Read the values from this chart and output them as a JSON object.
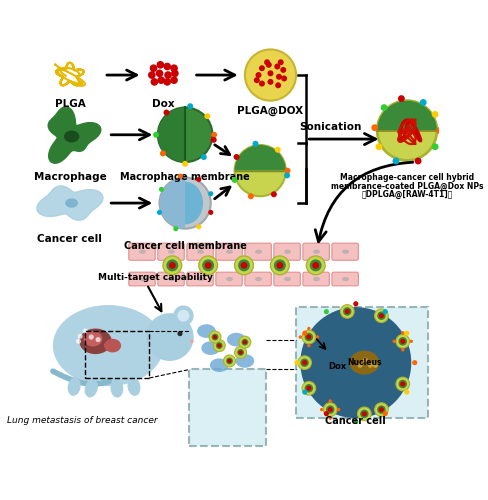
{
  "bg_color": "#ffffff",
  "top_section": {
    "plga_color": "#f5c518",
    "plga_label": "PLGA",
    "dox_dot_color": "#cc0000",
    "dox_label": "Dox",
    "plgadox_outer": "#e8d44d",
    "plgadox_label": "PLGA@DOX",
    "sonication_label": "Sonication",
    "hybrid_label1": "Macrophage-cancer cell hybrid",
    "hybrid_label2": "membrance-coated PLGA@Dox NPs",
    "hybrid_label3": "（DPLGA@[RAW-4T1]）"
  },
  "middle_section": {
    "macrophage_green": "#2e7d32",
    "macrophage_dark": "#1b4d1e",
    "macrophage_label": "Macrophage",
    "macro_membrane_label": "Macrophage membrane",
    "cancer_cell_blue": "#8ab8d4",
    "cancer_cell_label": "Cancer cell",
    "cancer_membrane_label": "Cancer cell membrane",
    "hybrid_np_label": ""
  },
  "bottom_section": {
    "vessel_pink": "#f4a0a0",
    "vessel_bg": "#f8d0d0",
    "nanoparticle_outer": "#c8d44d",
    "mouse_color": "#a8cfe0",
    "cancer_cell_big_color": "#1a5276",
    "dox_label": "Dox",
    "nucleus_label": "Nucleus",
    "cancer_cell_label2": "Cancer cell",
    "lung_label": "Lung metastasis of breast cancer",
    "multi_target_label": "Multi-target capability",
    "box_bg": "#d4eef4"
  }
}
